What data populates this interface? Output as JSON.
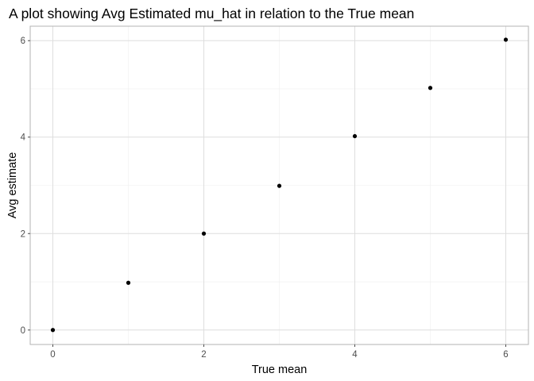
{
  "chart_data": {
    "type": "scatter",
    "title": "A plot showing Avg Estimated mu_hat in relation to the True mean",
    "xlabel": "True mean",
    "ylabel": "Avg estimate",
    "x": [
      0,
      1,
      2,
      3,
      4,
      5,
      6
    ],
    "y": [
      0.0,
      0.98,
      2.0,
      2.99,
      4.02,
      5.02,
      6.02
    ],
    "xlim": [
      -0.3,
      6.3
    ],
    "ylim": [
      -0.3,
      6.3
    ],
    "xticks": [
      "0",
      "2",
      "4",
      "6"
    ],
    "yticks": [
      "0",
      "2",
      "4",
      "6"
    ],
    "point_color": "#000000",
    "grid": true,
    "legend": "none"
  }
}
